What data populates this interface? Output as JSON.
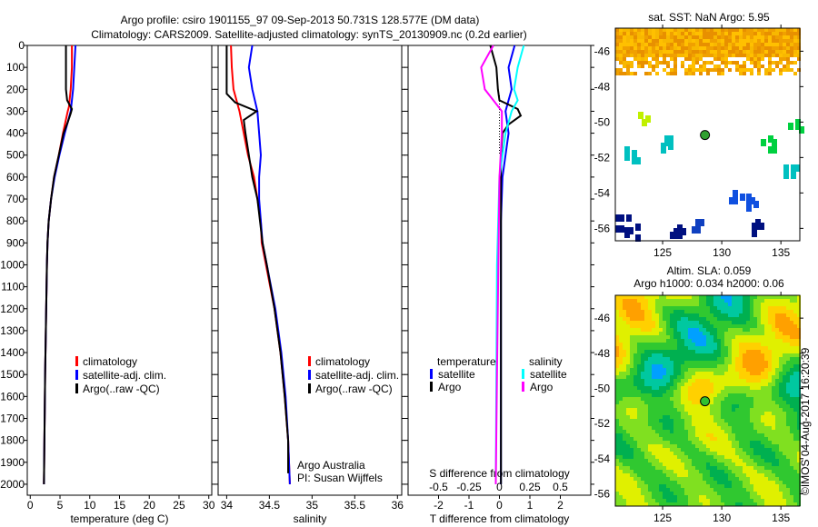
{
  "title_line1": "Argo profile: csiro 1901155_97 09-Sep-2013 50.731S 128.577E (DM data)",
  "title_line2": "Climatology: CARS2009. Satellite-adjusted climatology: synTS_20130909.nc (0.2d earlier)",
  "colors": {
    "climatology": "#ff0000",
    "satellite": "#0000ff",
    "argo": "#000000",
    "sal_sat": "#00ffff",
    "sal_argo": "#ff00ff"
  },
  "chart_data": [
    {
      "type": "line",
      "name": "temperature",
      "xlabel": "temperature (deg C)",
      "ylabel": "",
      "xlim": [
        -0.5,
        30.5
      ],
      "ylim": [
        2050,
        0
      ],
      "xticks": [
        "0",
        "5",
        "10",
        "15",
        "20",
        "25",
        "30"
      ],
      "xtick_values": [
        0,
        5,
        10,
        15,
        20,
        25,
        30
      ],
      "yticks": [
        "0",
        "100",
        "200",
        "300",
        "400",
        "500",
        "600",
        "700",
        "800",
        "900",
        "1000",
        "1100",
        "1200",
        "1300",
        "1400",
        "1500",
        "1600",
        "1700",
        "1800",
        "1900",
        "2000"
      ],
      "legend": [
        "climatology",
        "satellite-adj. clim.",
        "Argo(..raw -QC)"
      ],
      "series": [
        {
          "name": "climatology",
          "depth": [
            0,
            100,
            200,
            280,
            300,
            400,
            500,
            600,
            700,
            800,
            900,
            1000,
            1500,
            2000
          ],
          "values": [
            7,
            7,
            6.8,
            6.5,
            6.3,
            5.5,
            4.8,
            4,
            3.5,
            3.1,
            2.9,
            2.8,
            2.5,
            2.3
          ]
        },
        {
          "name": "satellite",
          "depth": [
            0,
            100,
            200,
            300,
            400,
            500,
            600,
            700,
            800,
            900,
            1000,
            1500,
            2000
          ],
          "values": [
            7.6,
            7.4,
            7.2,
            6.8,
            5.8,
            4.9,
            4.1,
            3.5,
            3.1,
            2.9,
            2.8,
            2.5,
            2.3
          ]
        },
        {
          "name": "argo",
          "depth": [
            0,
            150,
            200,
            250,
            290,
            310,
            350,
            400,
            500,
            600,
            700,
            800,
            900,
            1000,
            1500,
            2000
          ],
          "values": [
            6,
            6,
            6,
            6.2,
            7,
            6.8,
            6.3,
            5.6,
            4.8,
            4,
            3.5,
            3.1,
            2.9,
            2.8,
            2.5,
            2.3
          ]
        }
      ]
    },
    {
      "type": "line",
      "name": "salinity",
      "xlabel": "salinity",
      "xlim": [
        33.9,
        36.05
      ],
      "ylim": [
        2050,
        0
      ],
      "xticks": [
        "34",
        "34.5",
        "35",
        "35.5",
        "36"
      ],
      "xtick_values": [
        34,
        34.5,
        35,
        35.5,
        36
      ],
      "legend": [
        "climatology",
        "satellite-adj. clim.",
        "Argo(..raw -QC)"
      ],
      "annotation": [
        "Argo Australia",
        "PI: Susan Wijffels"
      ],
      "series": [
        {
          "name": "climatology",
          "depth": [
            0,
            100,
            200,
            300,
            400,
            500,
            600,
            700,
            800,
            900,
            1000,
            1200,
            1400,
            1600,
            1800,
            2000
          ],
          "values": [
            34.05,
            34.06,
            34.08,
            34.15,
            34.2,
            34.25,
            34.32,
            34.36,
            34.4,
            34.41,
            34.46,
            34.56,
            34.63,
            34.68,
            34.72,
            34.74
          ]
        },
        {
          "name": "satellite",
          "depth": [
            0,
            100,
            200,
            300,
            400,
            500,
            600,
            700,
            800,
            900,
            1000,
            1200,
            1400,
            1600,
            1800,
            2000
          ],
          "values": [
            34.3,
            34.26,
            34.3,
            34.36,
            34.38,
            34.4,
            34.38,
            34.38,
            34.4,
            34.42,
            34.47,
            34.57,
            34.64,
            34.69,
            34.72,
            34.74
          ]
        },
        {
          "name": "argo",
          "depth": [
            0,
            150,
            220,
            260,
            300,
            340,
            400,
            500,
            600,
            700,
            800,
            900,
            1000,
            1200,
            1400,
            1600,
            1800,
            1950
          ],
          "values": [
            34.0,
            34.0,
            34.0,
            34.1,
            34.35,
            34.2,
            34.22,
            34.26,
            34.3,
            34.36,
            34.39,
            34.42,
            34.47,
            34.56,
            34.63,
            34.68,
            34.72,
            34.72
          ]
        }
      ]
    },
    {
      "type": "line",
      "name": "difference",
      "xlabel": "T difference from climatology",
      "x2label": "S difference from climatology",
      "xlim": [
        -3,
        3
      ],
      "ylim": [
        2050,
        0
      ],
      "xticks": [
        "-2",
        "-1",
        "0",
        "1",
        "2"
      ],
      "xtick_values": [
        -2,
        -1,
        0,
        1,
        2
      ],
      "x2ticks": [
        "-0.5",
        "-0.25",
        "0",
        "0.25",
        "0.5"
      ],
      "x2tick_values": [
        -0.5,
        -0.25,
        0,
        0.25,
        0.5
      ],
      "legend_headers": [
        "temperature",
        "salinity"
      ],
      "legend": [
        "satellite",
        "Argo",
        "satellite",
        "Argo"
      ],
      "series": [
        {
          "name": "T satellite",
          "axis": "T",
          "depth": [
            0,
            50,
            100,
            200,
            300,
            400,
            500,
            600,
            800,
            1000,
            2000
          ],
          "values": [
            0.5,
            0.4,
            0.3,
            0.4,
            0.2,
            0.3,
            0.2,
            0.1,
            0.05,
            0.05,
            0.05
          ]
        },
        {
          "name": "T Argo",
          "axis": "T",
          "depth": [
            0,
            50,
            100,
            200,
            250,
            290,
            320,
            360,
            400,
            500,
            600,
            1000,
            2000
          ],
          "values": [
            -0.3,
            -0.2,
            -0.1,
            -0.05,
            0,
            0.6,
            0.7,
            0.3,
            0.1,
            0.05,
            0.05,
            0.05,
            0.05
          ]
        },
        {
          "name": "S satellite",
          "axis": "S",
          "depth": [
            0,
            100,
            200,
            250,
            300,
            400,
            600,
            1000,
            2000
          ],
          "values": [
            0.2,
            0.15,
            0.12,
            0.15,
            0.1,
            0.05,
            0,
            -0.02,
            -0.03
          ]
        },
        {
          "name": "S Argo",
          "axis": "S",
          "depth": [
            0,
            100,
            200,
            300,
            400,
            600,
            1500,
            2000
          ],
          "values": [
            -0.05,
            -0.15,
            -0.12,
            0.02,
            0.02,
            0,
            -0.02,
            -0.03
          ]
        }
      ]
    },
    {
      "type": "heatmap",
      "name": "sst-map",
      "title": "sat. SST: NaN Argo: 5.95",
      "xticks": [
        "125",
        "130",
        "135"
      ],
      "yticks": [
        "-46",
        "-48",
        "-50",
        "-52",
        "-54",
        "-56"
      ],
      "float_position": [
        128.58,
        -50.73
      ]
    },
    {
      "type": "heatmap",
      "name": "sla-map",
      "title": "Altim. SLA: 0.059",
      "subtitle": "Argo h1000: 0.034 h2000: 0.06",
      "xticks": [
        "125",
        "130",
        "135"
      ],
      "yticks": [
        "-46",
        "-48",
        "-50",
        "-52",
        "-54",
        "-56"
      ],
      "float_position": [
        128.58,
        -50.73
      ]
    }
  ],
  "credit": "©IMOS 04-Aug-2017 16:20:39"
}
